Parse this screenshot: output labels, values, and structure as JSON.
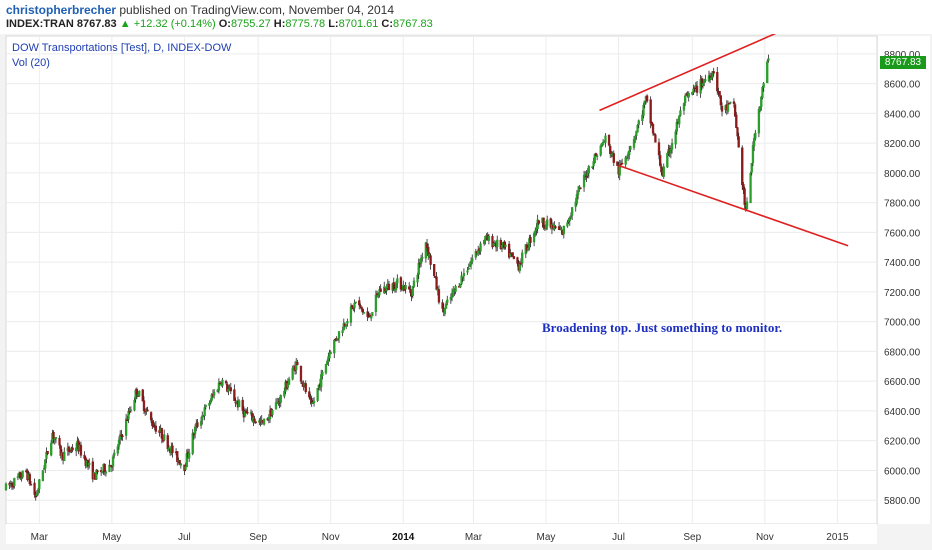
{
  "header": {
    "author": "christopherbrecher",
    "published": " published on TradingView.com, November 04, 2014",
    "symbol": "INDEX:TRAN",
    "last": "8767.83",
    "change_icon": "up-triangle-icon",
    "change": "+12.32 (+0.14%)",
    "open_label": "O:",
    "open": "8755.27",
    "high_label": "H:",
    "high": "8775.78",
    "low_label": "L:",
    "low": "8701.61",
    "close_label": "C:",
    "close": "8767.83"
  },
  "legend": {
    "title": "DOW Transportations [Test], D, INDEX-DOW",
    "vol": "Vol (20)"
  },
  "annotation": "Broadening top. Just something to monitor.",
  "colors": {
    "up": "#2a9d2a",
    "down": "#8b1a1a",
    "trendline": "#e02020",
    "label_bg": "#1a9a1a",
    "text_blue": "#1e3fb0"
  },
  "chart_data": {
    "type": "candlestick",
    "title": "DOW Transportations [Test], D, INDEX-DOW",
    "x_ticks": [
      "Mar",
      "May",
      "Jul",
      "Sep",
      "Nov",
      "2014",
      "Mar",
      "May",
      "Jul",
      "Sep",
      "Nov",
      "2015"
    ],
    "y_ticks": [
      5800,
      6000,
      6200,
      6400,
      6600,
      6800,
      7000,
      7200,
      7400,
      7600,
      7800,
      8000,
      8200,
      8400,
      8600,
      8800
    ],
    "ylim": [
      5640,
      8920
    ],
    "last_price": 8767.83,
    "period_start": "2013-02-01",
    "period_end": "2014-11-04",
    "anchors": [
      [
        "2013-02-01",
        5880
      ],
      [
        "2013-02-18",
        5990
      ],
      [
        "2013-02-26",
        5820
      ],
      [
        "2013-03-12",
        6250
      ],
      [
        "2013-03-20",
        6100
      ],
      [
        "2013-04-02",
        6170
      ],
      [
        "2013-04-16",
        5960
      ],
      [
        "2013-05-01",
        6050
      ],
      [
        "2013-05-22",
        6540
      ],
      [
        "2013-06-03",
        6330
      ],
      [
        "2013-06-12",
        6240
      ],
      [
        "2013-06-24",
        6090
      ],
      [
        "2013-07-01",
        6030
      ],
      [
        "2013-07-10",
        6280
      ],
      [
        "2013-08-01",
        6610
      ],
      [
        "2013-08-20",
        6390
      ],
      [
        "2013-09-05",
        6310
      ],
      [
        "2013-09-20",
        6490
      ],
      [
        "2013-10-03",
        6720
      ],
      [
        "2013-10-16",
        6420
      ],
      [
        "2013-11-01",
        6820
      ],
      [
        "2013-11-22",
        7130
      ],
      [
        "2013-12-03",
        7020
      ],
      [
        "2013-12-12",
        7210
      ],
      [
        "2013-12-28",
        7260
      ],
      [
        "2014-01-08",
        7200
      ],
      [
        "2014-01-20",
        7540
      ],
      [
        "2014-02-03",
        7060
      ],
      [
        "2014-02-18",
        7280
      ],
      [
        "2014-03-10",
        7560
      ],
      [
        "2014-03-26",
        7500
      ],
      [
        "2014-04-08",
        7380
      ],
      [
        "2014-04-25",
        7680
      ],
      [
        "2014-05-15",
        7600
      ],
      [
        "2014-06-05",
        8020
      ],
      [
        "2014-06-20",
        8230
      ],
      [
        "2014-07-01",
        8010
      ],
      [
        "2014-07-15",
        8260
      ],
      [
        "2014-07-24",
        8490
      ],
      [
        "2014-08-07",
        7990
      ],
      [
        "2014-08-25",
        8480
      ],
      [
        "2014-09-05",
        8570
      ],
      [
        "2014-09-19",
        8690
      ],
      [
        "2014-09-26",
        8420
      ],
      [
        "2014-10-06",
        8460
      ],
      [
        "2014-10-16",
        7720
      ],
      [
        "2014-10-24",
        8300
      ],
      [
        "2014-11-04",
        8767.83
      ]
    ],
    "trendlines": [
      {
        "name": "upper",
        "from": [
          "2014-06-15",
          8420
        ],
        "to": [
          "2015-01-10",
          9150
        ]
      },
      {
        "name": "lower",
        "from": [
          "2014-07-01",
          8050
        ],
        "to": [
          "2015-01-10",
          7510
        ]
      }
    ]
  }
}
